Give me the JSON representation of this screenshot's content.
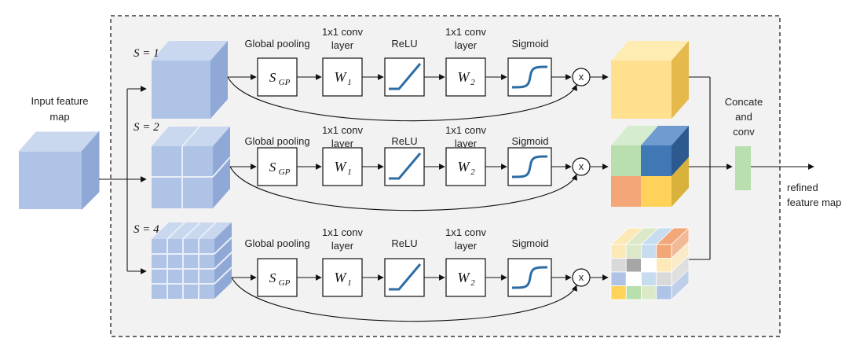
{
  "input_label_1": "Input feature",
  "input_label_2": "map",
  "output_label_1": "refined",
  "output_label_2": "feature map",
  "concat_label_1": "Concate",
  "concat_label_2": "and",
  "concat_label_3": "conv",
  "stage_labels": {
    "global_pooling": "Global pooling",
    "conv1_line1": "1x1 conv",
    "conv1_line2": "layer",
    "relu": "ReLU",
    "conv2_line1": "1x1 conv",
    "conv2_line2": "layer",
    "sigmoid": "Sigmoid"
  },
  "ops": {
    "pool_symbol": "S",
    "pool_sub": "GP",
    "w1_symbol": "W",
    "w1_sub": "1",
    "w2_symbol": "W",
    "w2_sub": "2",
    "multiply": "x"
  },
  "branches": [
    {
      "scale_label": "S = 1"
    },
    {
      "scale_label": "S = 2"
    },
    {
      "scale_label": "S = 4"
    }
  ],
  "colors": {
    "input_cube": "#aec3e6",
    "concat_block": "#b9dfae",
    "frame_fill": "#f2f2f2",
    "curve": "#2e6da4",
    "out_s1": "#ffe08f",
    "out_s2": [
      "#b9dfae",
      "#3f78b5",
      "#f3a778",
      "#ffd35a"
    ],
    "out_s4": [
      "#fde9b8",
      "#dbe9c9",
      "#c7dcef",
      "#f3a778",
      "#d9d9d9",
      "#a6a6a6",
      "#ffffff",
      "#fde9b8",
      "#aec3e6",
      "#ffffff",
      "#c7dcef",
      "#d9d9d9",
      "#ffd35a",
      "#b9dfae",
      "#dbe9c9",
      "#aec3e6"
    ]
  }
}
